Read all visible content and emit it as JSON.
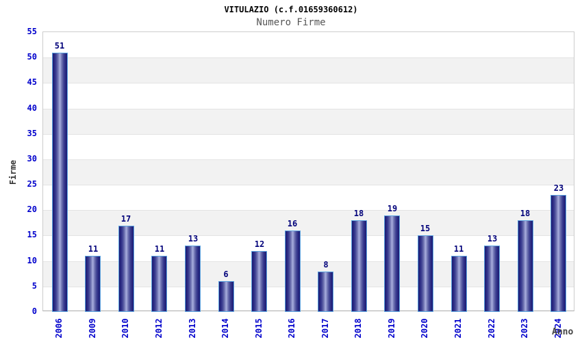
{
  "chart_data": {
    "type": "bar",
    "title": "VITULAZIO (c.f.01659360612)",
    "subtitle": "Numero Firme",
    "xlabel": "Anno",
    "ylabel": "Firme",
    "categories": [
      "2006",
      "2009",
      "2010",
      "2012",
      "2013",
      "2014",
      "2015",
      "2016",
      "2017",
      "2018",
      "2019",
      "2020",
      "2021",
      "2022",
      "2023",
      "2024"
    ],
    "values": [
      51,
      11,
      17,
      11,
      13,
      6,
      12,
      16,
      8,
      18,
      19,
      15,
      11,
      13,
      18,
      23
    ],
    "ylim": [
      0,
      55
    ],
    "yticks": [
      0,
      5,
      10,
      15,
      20,
      25,
      30,
      35,
      40,
      45,
      50,
      55
    ],
    "grid": "horizontal-bands-alternating",
    "legend": "none",
    "value_labels": "above-bars",
    "colors": {
      "bar_edge": "#1c1c74",
      "bar_center_highlight": "#aab0dc",
      "bar_border": "#5ba3e0",
      "value_label": "#00007a",
      "tick_label": "#0000cc",
      "axis_title": "#333333",
      "title": "#000000",
      "subtitle": "#555555",
      "band_gray": "#f2f2f2",
      "gridline": "#e3e3e3",
      "plot_border": "#cccccc"
    }
  }
}
